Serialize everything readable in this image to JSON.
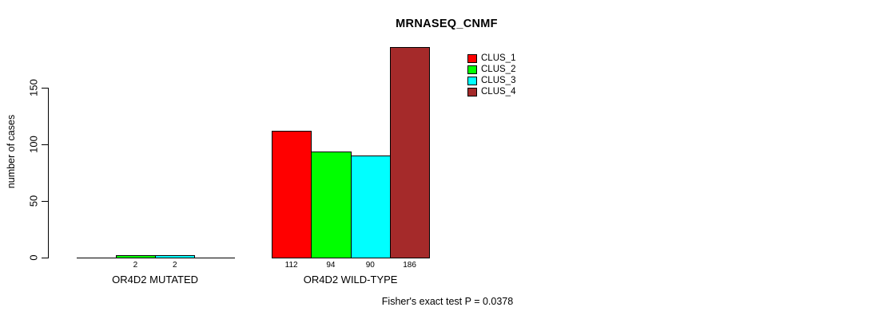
{
  "chart_data": {
    "type": "bar",
    "title": "MRNASEQ_CNMF",
    "ylabel": "number of cases",
    "xlabel": "",
    "footer": "Fisher's exact test P = 0.0378",
    "groups": [
      "OR4D2 MUTATED",
      "OR4D2 WILD-TYPE"
    ],
    "series": [
      {
        "name": "CLUS_1",
        "color": "#FF0000",
        "values": [
          0,
          112
        ]
      },
      {
        "name": "CLUS_2",
        "color": "#00FF00",
        "values": [
          2,
          94
        ]
      },
      {
        "name": "CLUS_3",
        "color": "#00FFFF",
        "values": [
          2,
          90
        ]
      },
      {
        "name": "CLUS_4",
        "color": "#A52A2A",
        "values": [
          0,
          186
        ]
      }
    ],
    "value_labels": [
      [
        "",
        "2",
        "2",
        ""
      ],
      [
        "112",
        "94",
        "90",
        "186"
      ]
    ],
    "yticks": [
      0,
      50,
      100,
      150
    ],
    "ylim": [
      0,
      186
    ],
    "grid": false,
    "legend_position": "inside-top-right",
    "axis_color": "#000000",
    "background_color": "#FFFFFF"
  }
}
